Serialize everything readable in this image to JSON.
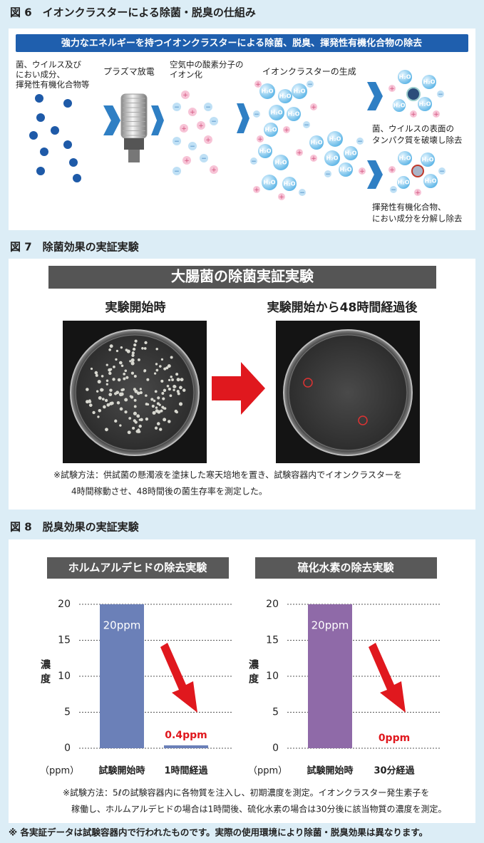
{
  "fig6": {
    "title": "図 6　イオンクラスターによる除菌・脱臭の仕組み",
    "banner": "強力なエネルギーを持つイオンクラスターによる除菌、脱臭、揮発性有機化合物の除去",
    "targets": [
      "菌、ウイルス及び",
      "におい成分、",
      "揮発性有機化合物等"
    ],
    "plasma": "プラズマ放電",
    "ionization": [
      "空気中の酸素分子の",
      "イオン化"
    ],
    "cluster": "イオンクラスターの生成",
    "bacteria": [
      "菌、ウイルスの表面の",
      "タンパク質を破壊し除去"
    ],
    "voc": [
      "揮発性有機化合物、",
      "におい成分を分解し除去"
    ],
    "molecule": "H₂O",
    "plus": "+",
    "minus": "−"
  },
  "fig7": {
    "title": "図 7　除菌効果の実証実験",
    "header": "大腸菌の除菌実証実験",
    "before": "実験開始時",
    "after": "実験開始から48時間経過後",
    "note": [
      "※試験方法：供試菌の懸濁液を塗抹した寒天培地を置き、試験容器内でイオンクラスターを",
      "4時間稼動させ、48時間後の菌生存率を測定した。"
    ]
  },
  "fig8": {
    "title": "図 8　脱臭効果の実証実験",
    "note": [
      "※試験方法：5ℓの試験容器内に各物質を注入し、初期濃度を測定。イオンクラスター発生素子を",
      "稼働し、ホルムアルデヒドの場合は1時間後、硫化水素の場合は30分後に該当物質の濃度を測定。"
    ]
  },
  "chart_data": [
    {
      "type": "bar",
      "title": "ホルムアルデヒドの除去実験",
      "categories": [
        "試験開始時",
        "1時間経過"
      ],
      "values": [
        20,
        0.4
      ],
      "value_labels": [
        "20ppm",
        "0.4ppm"
      ],
      "color": "#6b80b8",
      "ylabel": "濃度",
      "unit": "（ppm）",
      "ylim": [
        0,
        20
      ],
      "yticks": [
        0,
        5,
        10,
        15,
        20
      ],
      "grid": true
    },
    {
      "type": "bar",
      "title": "硫化水素の除去実験",
      "categories": [
        "試験開始時",
        "30分経過"
      ],
      "values": [
        20,
        0
      ],
      "value_labels": [
        "20ppm",
        "0ppm"
      ],
      "color": "#8f6aa8",
      "ylabel": "濃度",
      "unit": "（ppm）",
      "ylim": [
        0,
        20
      ],
      "yticks": [
        0,
        5,
        10,
        15,
        20
      ],
      "grid": true
    }
  ],
  "footer": "※ 各実証データは試験容器内で行われたものです。実際の使用環境により除菌・脱臭効果は異なります。"
}
